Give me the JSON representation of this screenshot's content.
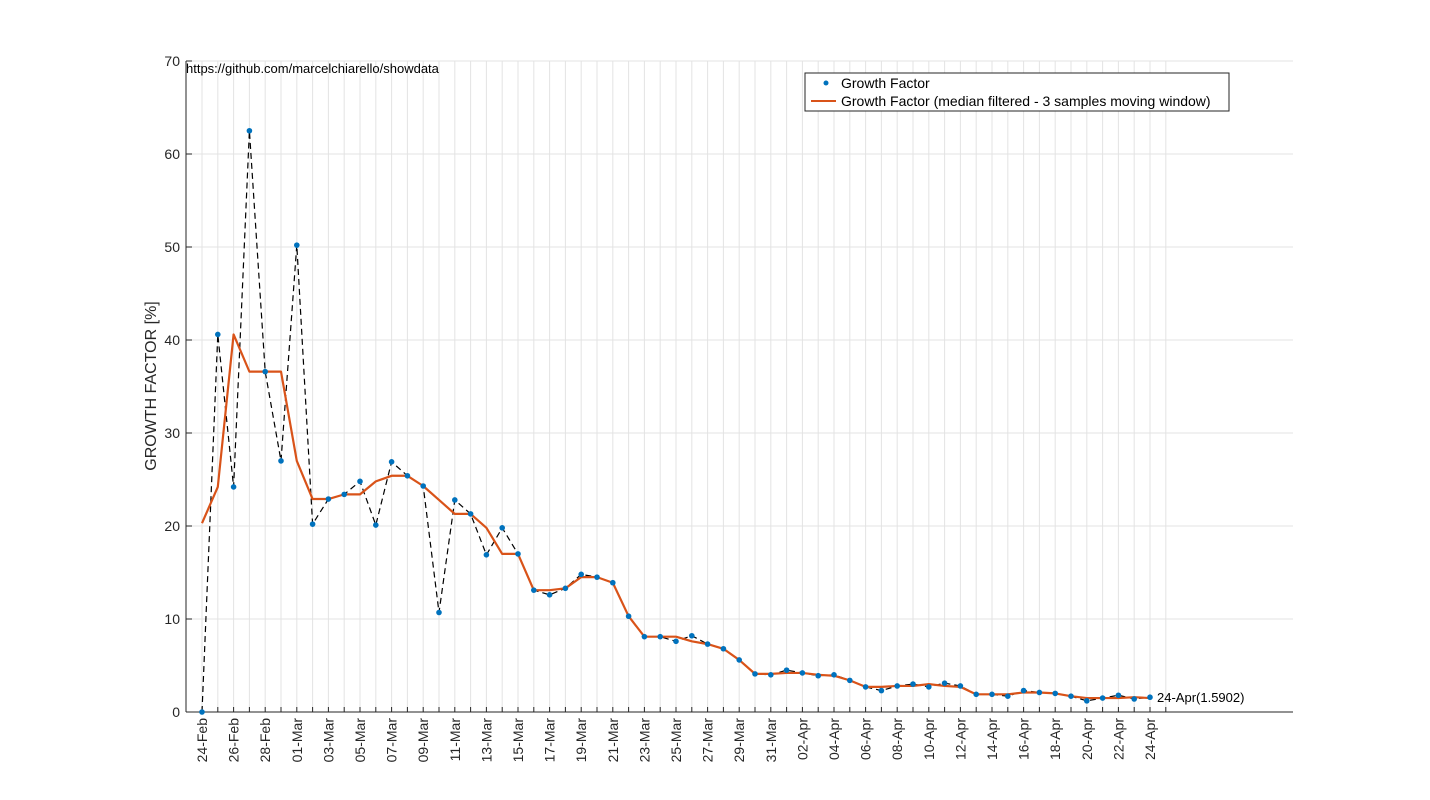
{
  "chart_data": {
    "type": "line",
    "ylabel": "GROWTH FACTOR [%]",
    "ylim": [
      0,
      70
    ],
    "yticks": [
      0,
      10,
      20,
      30,
      40,
      50,
      60,
      70
    ],
    "x_start": "24-Feb",
    "x_end": "25-Apr",
    "x_tick_labels": [
      "24-Feb",
      "26-Feb",
      "28-Feb",
      "01-Mar",
      "03-Mar",
      "05-Mar",
      "07-Mar",
      "09-Mar",
      "11-Mar",
      "13-Mar",
      "15-Mar",
      "17-Mar",
      "19-Mar",
      "21-Mar",
      "23-Mar",
      "25-Mar",
      "27-Mar",
      "29-Mar",
      "31-Mar",
      "02-Apr",
      "04-Apr",
      "06-Apr",
      "08-Apr",
      "10-Apr",
      "12-Apr",
      "14-Apr",
      "16-Apr",
      "18-Apr",
      "20-Apr",
      "22-Apr",
      "24-Apr"
    ],
    "grid": true,
    "legend_position": "top-right",
    "annotations": {
      "source": "https://github.com/marcelchiarello/showdata",
      "last_point_label": "24-Apr(1.5902)"
    },
    "series": [
      {
        "name": "Growth Factor",
        "color": "#0072BD",
        "style": "dots-dashed",
        "values": [
          0,
          40.6,
          24.2,
          62.5,
          36.6,
          27.0,
          50.2,
          20.2,
          22.9,
          23.4,
          24.8,
          20.1,
          26.9,
          25.4,
          24.3,
          10.7,
          22.8,
          21.3,
          16.9,
          19.8,
          17.0,
          13.1,
          12.6,
          13.3,
          14.8,
          14.5,
          13.9,
          10.3,
          8.1,
          8.1,
          7.6,
          8.2,
          7.3,
          6.8,
          5.6,
          4.1,
          4.0,
          4.5,
          4.2,
          3.9,
          4.0,
          3.4,
          2.7,
          2.3,
          2.8,
          3.0,
          2.7,
          3.1,
          2.8,
          1.9,
          1.9,
          1.7,
          2.3,
          2.1,
          2.0,
          1.7,
          1.2,
          1.5,
          1.8,
          1.4,
          1.59
        ]
      },
      {
        "name": "Growth Factor (median filtered - 3 samples moving window)",
        "color": "#D95319",
        "style": "line",
        "values": [
          20.3,
          24.2,
          40.6,
          36.6,
          36.6,
          36.6,
          27.0,
          22.9,
          22.9,
          23.4,
          23.4,
          24.8,
          25.4,
          25.4,
          24.3,
          22.8,
          21.3,
          21.3,
          19.8,
          17.0,
          17.0,
          13.1,
          13.1,
          13.3,
          14.5,
          14.5,
          13.9,
          10.3,
          8.1,
          8.1,
          8.1,
          7.6,
          7.3,
          6.8,
          5.6,
          4.1,
          4.1,
          4.2,
          4.2,
          4.0,
          3.9,
          3.4,
          2.7,
          2.7,
          2.8,
          2.8,
          3.0,
          2.8,
          2.7,
          1.9,
          1.9,
          1.9,
          2.1,
          2.1,
          2.0,
          1.7,
          1.5,
          1.5,
          1.5,
          1.59,
          1.5
        ]
      }
    ]
  }
}
